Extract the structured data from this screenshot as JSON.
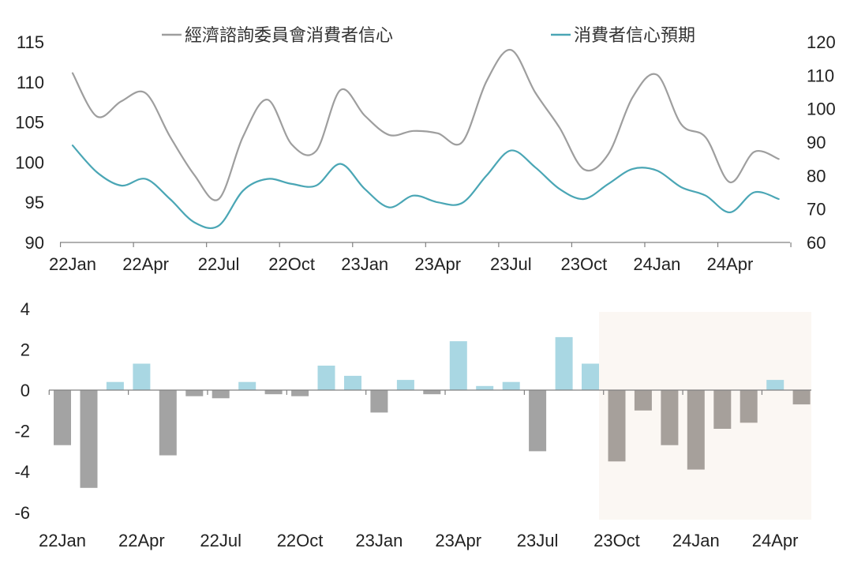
{
  "chart_data": [
    {
      "type": "line",
      "legend": {
        "placement": "top"
      },
      "x": [
        "22Jan",
        "22Feb",
        "22Mar",
        "22Apr",
        "22May",
        "22Jun",
        "22Jul",
        "22Aug",
        "22Sep",
        "22Oct",
        "22Nov",
        "22Dec",
        "23Jan",
        "23Feb",
        "23Mar",
        "23Apr",
        "23May",
        "23Jun",
        "23Jul",
        "23Aug",
        "23Sep",
        "23Oct",
        "23Nov",
        "23Dec",
        "24Jan",
        "24Feb",
        "24Mar",
        "24Apr",
        "24May",
        "24Jun"
      ],
      "x_tick_labels": [
        "22Jan",
        "22Apr",
        "22Jul",
        "22Oct",
        "23Jan",
        "23Apr",
        "23Jul",
        "23Oct",
        "24Jan",
        "24Apr"
      ],
      "y_left": {
        "ticks": [
          "90",
          "95",
          "100",
          "105",
          "110",
          "115"
        ],
        "range": [
          90,
          115
        ]
      },
      "y_right": {
        "ticks": [
          "60",
          "70",
          "80",
          "90",
          "100",
          "110",
          "120"
        ],
        "range": [
          60,
          120
        ]
      },
      "series": [
        {
          "name": "經濟諮詢委員會消費者信心",
          "axis": "left",
          "color": "#9e9e9e",
          "values": [
            111.1,
            105.7,
            107.6,
            108.6,
            103.2,
            98.4,
            95.4,
            103.2,
            107.8,
            102.2,
            101.4,
            109.0,
            105.8,
            103.4,
            103.9,
            103.6,
            102.5,
            110.1,
            114.0,
            108.7,
            104.3,
            99.1,
            101.0,
            108.1,
            110.9,
            104.7,
            103.1,
            97.5,
            101.3,
            100.4
          ]
        },
        {
          "name": "消費者信心預期",
          "axis": "right",
          "color": "#4aa6b5",
          "values": [
            89.0,
            81.0,
            77.0,
            79.0,
            73.0,
            66.0,
            65.0,
            75.5,
            79.0,
            77.5,
            77.0,
            83.5,
            76.0,
            70.5,
            74.0,
            72.0,
            71.8,
            80.0,
            87.5,
            82.5,
            76.0,
            73.0,
            77.5,
            82.0,
            81.5,
            76.5,
            74.0,
            69.0,
            75.0,
            73.0
          ]
        }
      ]
    },
    {
      "type": "bar",
      "x_tick_labels": [
        "22Jan",
        "22Apr",
        "22Jul",
        "22Oct",
        "23Jan",
        "23Apr",
        "23Jul",
        "23Oct",
        "24Jan",
        "24Apr"
      ],
      "y": {
        "ticks": [
          "4",
          "2",
          "0",
          "-2",
          "-4",
          "-6"
        ],
        "range": [
          -6,
          4
        ]
      },
      "colors": {
        "positive": "#a9d7e3",
        "negative": "#a3a3a3",
        "negative_highlighted": "#a6a09b",
        "highlight_band": "#fbf7f3"
      },
      "highlight_from_index": 21,
      "values": [
        -2.7,
        -4.8,
        0.4,
        1.3,
        -3.2,
        -0.3,
        -0.4,
        0.4,
        -0.2,
        -0.3,
        1.2,
        0.7,
        -1.1,
        0.5,
        -0.2,
        2.4,
        0.2,
        0.4,
        -3.0,
        2.6,
        1.3,
        -3.5,
        -1.0,
        -2.7,
        -3.9,
        -1.9,
        -1.6,
        0.5,
        -0.7
      ]
    }
  ]
}
